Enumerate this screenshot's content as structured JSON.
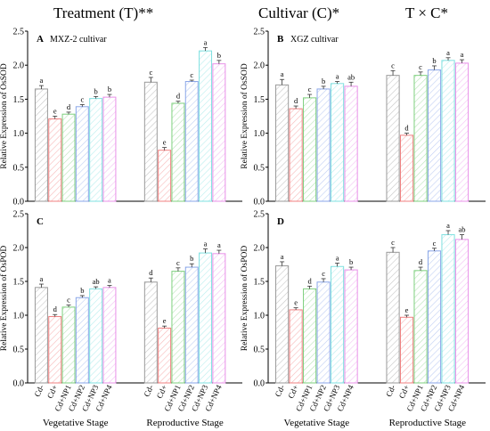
{
  "headers": {
    "treatment": "Treatment (T)**",
    "cultivar": "Cultivar (C)*",
    "interaction": "T × C*"
  },
  "chart_data": [
    {
      "type": "bar",
      "panel": "A",
      "subtitle": "MXZ-2  cultivar",
      "ylabel": "Relative Expression of OsSOD",
      "ylim": [
        0,
        2.5
      ],
      "yticks": [
        "0.0",
        "0.5",
        "1.0",
        "1.5",
        "2.0",
        "2.5"
      ],
      "groups": [
        {
          "name": "Vegetative Stage",
          "categories": [
            "Cd-",
            "Cd+",
            "Cd+NP1",
            "Cd+NP2",
            "Cd+NP3",
            "Cd+NP4"
          ],
          "values": [
            1.65,
            1.21,
            1.28,
            1.39,
            1.51,
            1.53
          ],
          "errors": [
            0.05,
            0.04,
            0.03,
            0.03,
            0.03,
            0.04
          ],
          "letters": [
            "a",
            "e",
            "d",
            "c",
            "b",
            "b"
          ]
        },
        {
          "name": "Reproductive Stage",
          "categories": [
            "Cd-",
            "Cd+",
            "Cd+NP1",
            "Cd+NP2",
            "Cd+NP3",
            "Cd+NP4"
          ],
          "values": [
            1.75,
            0.75,
            1.44,
            1.76,
            2.21,
            2.02
          ],
          "errors": [
            0.07,
            0.04,
            0.03,
            0.02,
            0.05,
            0.05
          ],
          "letters": [
            "c",
            "e",
            "d",
            "c",
            "a",
            "b"
          ]
        }
      ],
      "show_category_labels": false
    },
    {
      "type": "bar",
      "panel": "B",
      "subtitle": "XGZ  cultivar",
      "ylabel": "Relative Expression of OsSOD",
      "ylim": [
        0,
        2.5
      ],
      "yticks": [
        "0.0",
        "0.5",
        "1.0",
        "1.5",
        "2.0",
        "2.5"
      ],
      "groups": [
        {
          "name": "Vegetative Stage",
          "categories": [
            "Cd-",
            "Cd+",
            "Cd+NP1",
            "Cd+NP2",
            "Cd+NP3",
            "Cd+NP4"
          ],
          "values": [
            1.71,
            1.36,
            1.52,
            1.65,
            1.73,
            1.69
          ],
          "errors": [
            0.08,
            0.04,
            0.05,
            0.04,
            0.03,
            0.06
          ],
          "letters": [
            "a",
            "d",
            "c",
            "b",
            "a",
            "ab"
          ]
        },
        {
          "name": "Reproductive Stage",
          "categories": [
            "Cd-",
            "Cd+",
            "Cd+NP1",
            "Cd+NP2",
            "Cd+NP3",
            "Cd+NP4"
          ],
          "values": [
            1.85,
            0.97,
            1.85,
            1.93,
            2.07,
            2.03
          ],
          "errors": [
            0.07,
            0.03,
            0.05,
            0.06,
            0.04,
            0.05
          ],
          "letters": [
            "c",
            "d",
            "c",
            "b",
            "a",
            "a"
          ]
        }
      ],
      "show_category_labels": false
    },
    {
      "type": "bar",
      "panel": "C",
      "subtitle": "",
      "ylabel": "Relative Expression of OsPOD",
      "ylim": [
        0,
        2.5
      ],
      "yticks": [
        "0.0",
        "0.5",
        "1.0",
        "1.5",
        "2.0",
        "2.5"
      ],
      "groups": [
        {
          "name": "Vegetative Stage",
          "categories": [
            "Cd-",
            "Cd+",
            "Cd+NP1",
            "Cd+NP2",
            "Cd+NP3",
            "Cd+NP4"
          ],
          "values": [
            1.41,
            0.98,
            1.12,
            1.26,
            1.39,
            1.41
          ],
          "errors": [
            0.05,
            0.03,
            0.03,
            0.03,
            0.03,
            0.03
          ],
          "letters": [
            "a",
            "d",
            "c",
            "b",
            "ab",
            "a"
          ]
        },
        {
          "name": "Reproductive Stage",
          "categories": [
            "Cd-",
            "Cd+",
            "Cd+NP1",
            "Cd+NP2",
            "Cd+NP3",
            "Cd+NP4"
          ],
          "values": [
            1.49,
            0.81,
            1.65,
            1.71,
            1.92,
            1.91
          ],
          "errors": [
            0.06,
            0.03,
            0.05,
            0.05,
            0.06,
            0.05
          ],
          "letters": [
            "d",
            "e",
            "c",
            "b",
            "a",
            "a"
          ]
        }
      ],
      "show_category_labels": true
    },
    {
      "type": "bar",
      "panel": "D",
      "subtitle": "",
      "ylabel": "Relative Expression of OsPOD",
      "ylim": [
        0,
        2.5
      ],
      "yticks": [
        "0.0",
        "0.5",
        "1.0",
        "1.5",
        "2.0",
        "2.5"
      ],
      "groups": [
        {
          "name": "Vegetative Stage",
          "categories": [
            "Cd-",
            "Cd+",
            "Cd+NP1",
            "Cd+NP2",
            "Cd+NP3",
            "Cd+NP4"
          ],
          "values": [
            1.73,
            1.08,
            1.39,
            1.49,
            1.72,
            1.67
          ],
          "errors": [
            0.06,
            0.03,
            0.04,
            0.05,
            0.05,
            0.04
          ],
          "letters": [
            "a",
            "e",
            "d",
            "c",
            "a",
            "b"
          ]
        },
        {
          "name": "Reproductive Stage",
          "categories": [
            "Cd-",
            "Cd+",
            "Cd+NP1",
            "Cd+NP2",
            "Cd+NP3",
            "Cd+NP4"
          ],
          "values": [
            1.93,
            0.97,
            1.66,
            1.95,
            2.19,
            2.12
          ],
          "errors": [
            0.07,
            0.03,
            0.05,
            0.04,
            0.06,
            0.07
          ],
          "letters": [
            "c",
            "e",
            "d",
            "c",
            "a",
            "ab"
          ]
        }
      ],
      "show_category_labels": true
    }
  ],
  "colors": {
    "bar_edges": [
      "#9a9a9a",
      "#f08080",
      "#7fd07f",
      "#8aa6e8",
      "#7fe0e0",
      "#e890e8"
    ],
    "bar_fill": "#ffffff",
    "hatch": "#bdbdbd"
  }
}
